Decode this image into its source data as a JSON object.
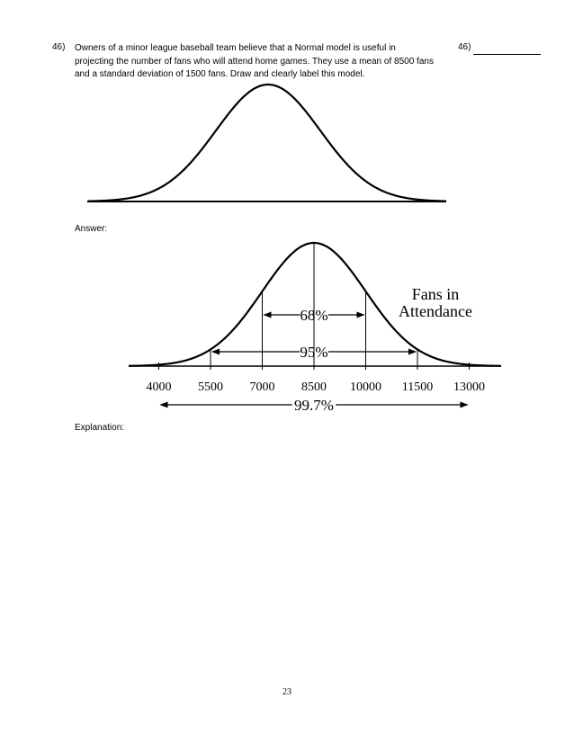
{
  "question": {
    "number": "46)",
    "lines": [
      "Owners of a minor league baseball team believe that a Normal model is useful in",
      "projecting the number of fans who will attend home games.  They use a mean of 8500 fans",
      "and a standard deviation of 1500 fans.  Draw and clearly label this model."
    ],
    "answer_number": "46)"
  },
  "answer_label": "Answer:",
  "explanation_label": "Explanation:",
  "page_number": "23",
  "chart_data": [
    {
      "type": "line",
      "description_in_image": "unlabeled bell curve",
      "xlabel": "",
      "ylabel": ""
    },
    {
      "type": "line",
      "title": "Fans in Attendance",
      "x_ticks": [
        "4000",
        "5500",
        "7000",
        "8500",
        "10000",
        "11500",
        "13000"
      ],
      "mean": 8500,
      "sd": 1500,
      "intervals": [
        {
          "label": "68%",
          "from": 7000,
          "to": 10000
        },
        {
          "label": "95%",
          "from": 5500,
          "to": 11500
        },
        {
          "label": "99.7%",
          "from": 4000,
          "to": 13000
        }
      ]
    }
  ]
}
